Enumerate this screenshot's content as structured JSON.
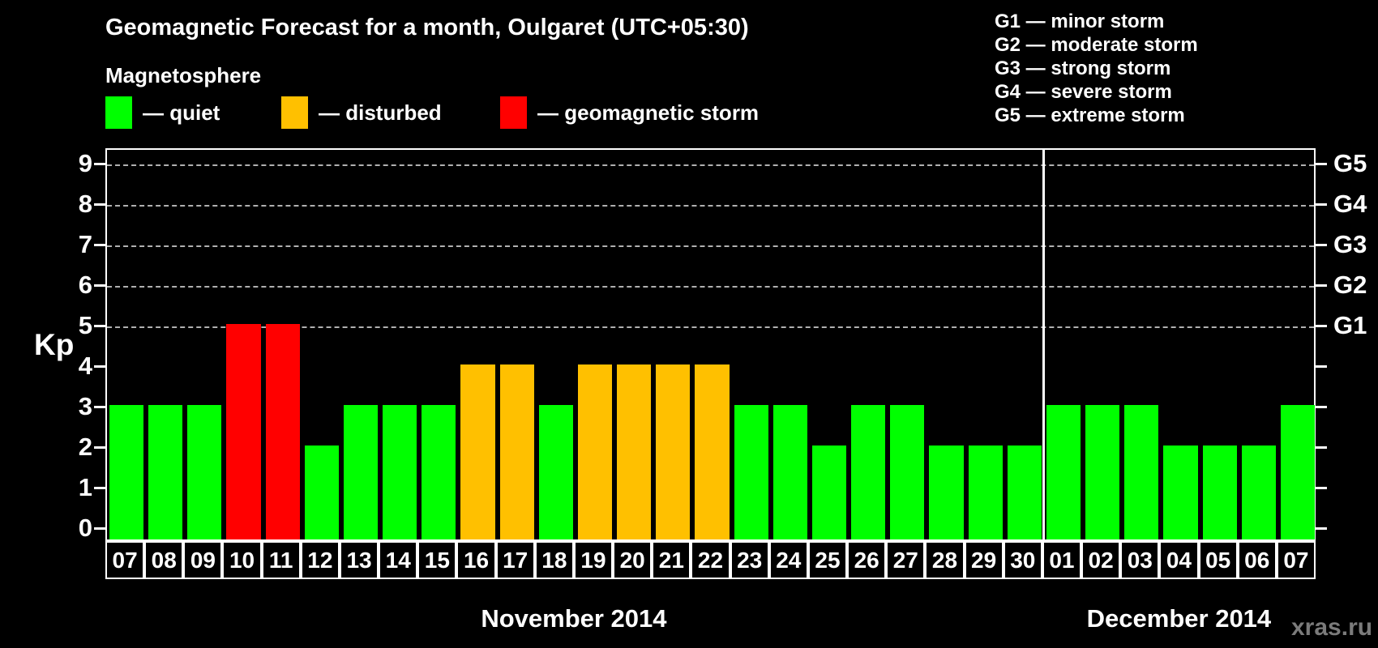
{
  "title": "Geomagnetic Forecast for a month, Oulgaret (UTC+05:30)",
  "subtitle": "Magnetosphere",
  "mag_legend": [
    {
      "key": "quiet",
      "label": "— quiet",
      "color": "#00ff00"
    },
    {
      "key": "disturbed",
      "label": "— disturbed",
      "color": "#ffc000"
    },
    {
      "key": "storm",
      "label": "— geomagnetic storm",
      "color": "#ff0000"
    }
  ],
  "g_legend": [
    "G1 — minor storm",
    "G2 — moderate storm",
    "G3 — strong storm",
    "G4 — severe storm",
    "G5 — extreme storm"
  ],
  "watermark": "xras.ru",
  "status_colors": {
    "quiet": "#00ff00",
    "disturbed": "#ffc000",
    "storm": "#ff0000"
  },
  "chart_data": {
    "type": "bar",
    "title": "Geomagnetic Forecast for a month, Oulgaret (UTC+05:30)",
    "xlabel": "",
    "ylabel": "Kp",
    "ylim": [
      0,
      9.4
    ],
    "y_ticks": [
      0,
      1,
      2,
      3,
      4,
      5,
      6,
      7,
      8,
      9
    ],
    "gridlines_kp": [
      5,
      6,
      7,
      8,
      9
    ],
    "grid_style": "dashed horizontal",
    "legend_position": "top-left",
    "right_axis_labels": [
      {
        "label": "G1",
        "kp": 5
      },
      {
        "label": "G2",
        "kp": 6
      },
      {
        "label": "G3",
        "kp": 7
      },
      {
        "label": "G4",
        "kp": 8
      },
      {
        "label": "G5",
        "kp": 9
      }
    ],
    "categories": [
      "07",
      "08",
      "09",
      "10",
      "11",
      "12",
      "13",
      "14",
      "15",
      "16",
      "17",
      "18",
      "19",
      "20",
      "21",
      "22",
      "23",
      "24",
      "25",
      "26",
      "27",
      "28",
      "29",
      "30",
      "01",
      "02",
      "03",
      "04",
      "05",
      "06",
      "07"
    ],
    "values": [
      3,
      3,
      3,
      5,
      5,
      2,
      3,
      3,
      3,
      4,
      4,
      3,
      4,
      4,
      4,
      4,
      3,
      3,
      2,
      3,
      3,
      2,
      2,
      2,
      3,
      3,
      3,
      2,
      2,
      2,
      3
    ],
    "statuses": [
      "quiet",
      "quiet",
      "quiet",
      "storm",
      "storm",
      "quiet",
      "quiet",
      "quiet",
      "quiet",
      "disturbed",
      "disturbed",
      "quiet",
      "disturbed",
      "disturbed",
      "disturbed",
      "disturbed",
      "quiet",
      "quiet",
      "quiet",
      "quiet",
      "quiet",
      "quiet",
      "quiet",
      "quiet",
      "quiet",
      "quiet",
      "quiet",
      "quiet",
      "quiet",
      "quiet",
      "quiet"
    ],
    "months": [
      {
        "label": "November 2014",
        "count": 24
      },
      {
        "label": "December 2014",
        "count": 7
      }
    ]
  }
}
